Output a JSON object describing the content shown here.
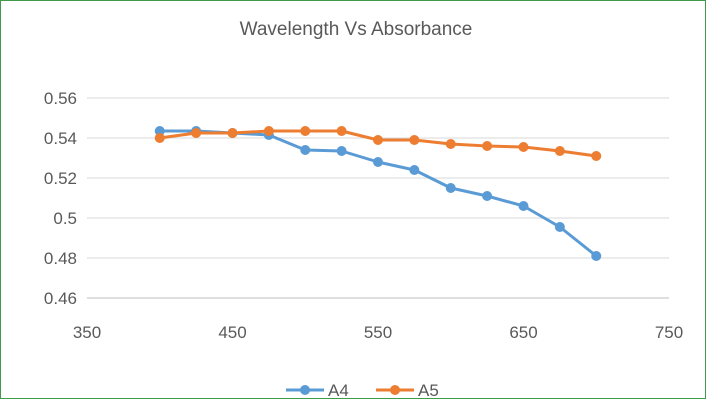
{
  "chart_data": {
    "type": "line",
    "title": "Wavelength Vs Absorbance",
    "xlabel": "",
    "ylabel": "",
    "xlim": [
      350,
      750
    ],
    "ylim": [
      0.46,
      0.56
    ],
    "x_ticks": [
      350,
      450,
      550,
      650,
      750
    ],
    "y_ticks": [
      0.46,
      0.48,
      0.5,
      0.52,
      0.54,
      0.56
    ],
    "x_tick_labels": [
      "350",
      "450",
      "550",
      "650",
      "750"
    ],
    "y_tick_labels": [
      "0.46",
      "0.48",
      "0.5",
      "0.52",
      "0.54",
      "0.56"
    ],
    "grid": "horizontal",
    "legend_position": "bottom",
    "series": [
      {
        "name": "A4",
        "color": "#5b9bd5",
        "x": [
          400,
          425,
          450,
          475,
          500,
          525,
          550,
          575,
          600,
          625,
          650,
          675,
          700
        ],
        "y": [
          0.5435,
          0.5435,
          0.5425,
          0.5415,
          0.534,
          0.5335,
          0.528,
          0.524,
          0.515,
          0.511,
          0.506,
          0.4955,
          0.481
        ]
      },
      {
        "name": "A5",
        "color": "#ed7d31",
        "x": [
          400,
          425,
          450,
          475,
          500,
          525,
          550,
          575,
          600,
          625,
          650,
          675,
          700
        ],
        "y": [
          0.54,
          0.5425,
          0.5425,
          0.5435,
          0.5435,
          0.5435,
          0.539,
          0.539,
          0.537,
          0.536,
          0.5355,
          0.5335,
          0.531
        ]
      }
    ]
  }
}
